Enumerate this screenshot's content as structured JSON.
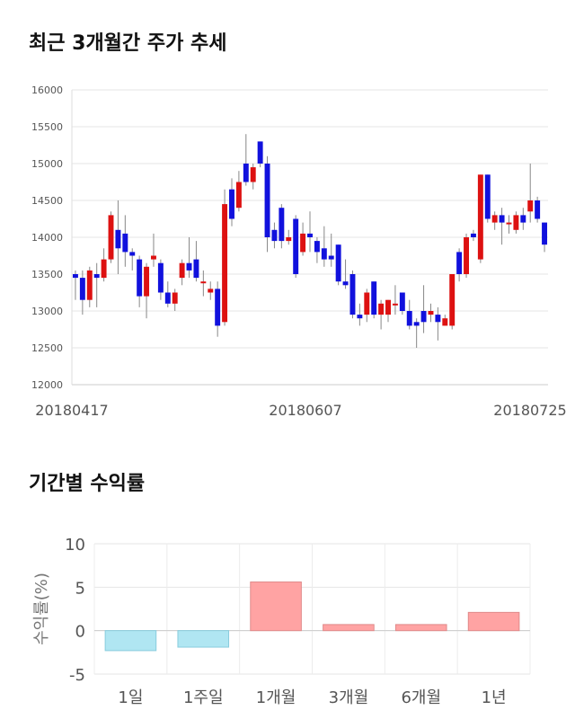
{
  "sections": {
    "price_title": "최근 3개월간 주가 추세",
    "return_title": "기간별 수익률"
  },
  "chart_data": [
    {
      "type": "candlestick",
      "title": "최근 3개월간 주가 추세",
      "ylim": [
        12000,
        16000
      ],
      "yticks": [
        "12000",
        "12500",
        "13000",
        "13500",
        "14000",
        "14500",
        "15000",
        "15500",
        "16000"
      ],
      "xtick_labels": [
        "20180417",
        "20180607",
        "20180725"
      ],
      "grid": true,
      "colors": {
        "up": "#dd1111",
        "down": "#1111dd",
        "wick": "#888888"
      },
      "candles": [
        [
          13500,
          13450,
          13550,
          13150
        ],
        [
          13450,
          13150,
          13550,
          12950
        ],
        [
          13150,
          13550,
          13600,
          13050
        ],
        [
          13500,
          13450,
          13650,
          13050
        ],
        [
          13450,
          13700,
          13850,
          13400
        ],
        [
          13700,
          14300,
          14350,
          13650
        ],
        [
          14100,
          13850,
          14500,
          13500
        ],
        [
          14050,
          13800,
          14300,
          13600
        ],
        [
          13800,
          13750,
          13850,
          13550
        ],
        [
          13700,
          13200,
          13750,
          13050
        ],
        [
          13200,
          13600,
          13650,
          12900
        ],
        [
          13700,
          13750,
          14050,
          13600
        ],
        [
          13650,
          13250,
          13700,
          13150
        ],
        [
          13250,
          13100,
          13400,
          13050
        ],
        [
          13100,
          13250,
          13300,
          13000
        ],
        [
          13450,
          13650,
          13700,
          13350
        ],
        [
          13650,
          13550,
          14000,
          13450
        ],
        [
          13700,
          13450,
          13950,
          13400
        ],
        [
          13400,
          13400,
          13550,
          13200
        ],
        [
          13250,
          13300,
          13400,
          13150
        ],
        [
          13300,
          12800,
          13400,
          12650
        ],
        [
          12850,
          14450,
          14650,
          12800
        ],
        [
          14650,
          14250,
          14800,
          14150
        ],
        [
          14400,
          14750,
          14900,
          14350
        ],
        [
          15000,
          14750,
          15400,
          14700
        ],
        [
          14750,
          14950,
          15000,
          14650
        ],
        [
          15300,
          15000,
          15300,
          14950
        ],
        [
          15000,
          14000,
          15100,
          13800
        ],
        [
          14100,
          13950,
          14200,
          13850
        ],
        [
          14400,
          13950,
          14450,
          13850
        ],
        [
          13950,
          14000,
          14100,
          13900
        ],
        [
          14250,
          13500,
          14300,
          13450
        ],
        [
          13800,
          14050,
          14200,
          13750
        ],
        [
          14050,
          14000,
          14350,
          13800
        ],
        [
          13950,
          13800,
          14000,
          13650
        ],
        [
          13850,
          13700,
          14150,
          13600
        ],
        [
          13750,
          13700,
          14050,
          13600
        ],
        [
          13900,
          13400,
          13900,
          13350
        ],
        [
          13400,
          13350,
          13700,
          13300
        ],
        [
          13500,
          12950,
          13550,
          12900
        ],
        [
          12950,
          12900,
          13100,
          12800
        ],
        [
          12950,
          13250,
          13300,
          12850
        ],
        [
          13400,
          12950,
          13400,
          12900
        ],
        [
          12950,
          13100,
          13150,
          12750
        ],
        [
          12950,
          13150,
          13150,
          12850
        ],
        [
          13100,
          13100,
          13350,
          12950
        ],
        [
          13250,
          13000,
          13250,
          12950
        ],
        [
          13000,
          12800,
          13150,
          12750
        ],
        [
          12850,
          12800,
          12900,
          12500
        ],
        [
          13000,
          12850,
          13350,
          12700
        ],
        [
          12950,
          13000,
          13100,
          12850
        ],
        [
          12950,
          12850,
          13050,
          12600
        ],
        [
          12800,
          12900,
          12950,
          12800
        ],
        [
          12800,
          13500,
          13500,
          12750
        ],
        [
          13800,
          13500,
          13850,
          13400
        ],
        [
          13500,
          14000,
          14050,
          13450
        ],
        [
          14050,
          14000,
          14100,
          13950
        ],
        [
          13700,
          14850,
          14850,
          13650
        ],
        [
          14850,
          14250,
          14850,
          14200
        ],
        [
          14200,
          14300,
          14350,
          14100
        ],
        [
          14300,
          14200,
          14400,
          13900
        ],
        [
          14200,
          14200,
          14300,
          14050
        ],
        [
          14100,
          14300,
          14350,
          14050
        ],
        [
          14300,
          14200,
          14400,
          14100
        ],
        [
          14350,
          14500,
          15000,
          14200
        ],
        [
          14500,
          14250,
          14550,
          14200
        ],
        [
          14200,
          13900,
          14200,
          13800
        ]
      ]
    },
    {
      "type": "bar",
      "title": "기간별 수익률",
      "ylabel": "수익률(%)",
      "ylim": [
        -5,
        10
      ],
      "yticks": [
        "-5",
        "0",
        "5",
        "10"
      ],
      "categories": [
        "1일",
        "1주일",
        "1개월",
        "3개월",
        "6개월",
        "1년"
      ],
      "values": [
        -2.3,
        -1.9,
        5.6,
        0.7,
        0.7,
        2.1
      ],
      "grid": true,
      "colors": {
        "positive": "#ffa3a3",
        "positive_edge": "#e08a8a",
        "negative": "#b0e6f2",
        "negative_edge": "#88ccdd"
      }
    }
  ]
}
